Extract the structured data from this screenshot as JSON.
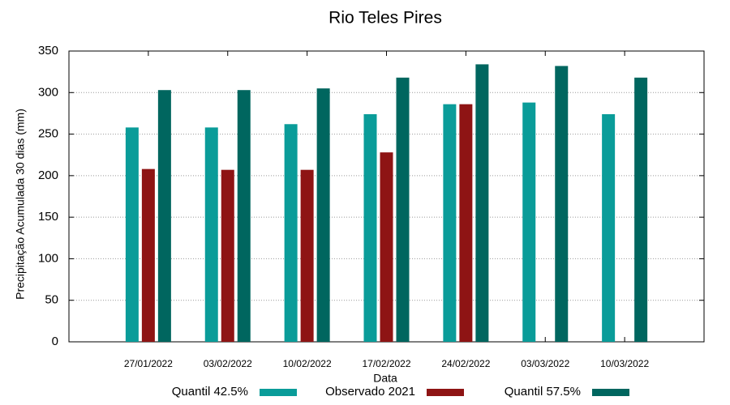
{
  "chart_data": {
    "type": "bar",
    "title": "Rio Teles Pires",
    "x_label": "Data",
    "y_label": "Precipitação Acumulada 30 dias (mm)",
    "categories": [
      "27/01/2022",
      "03/02/2022",
      "10/02/2022",
      "17/02/2022",
      "24/02/2022",
      "03/03/2022",
      "10/03/2022"
    ],
    "series": [
      {
        "name": "Quantil 42.5%",
        "color": "#0a9c99",
        "values": [
          258,
          258,
          262,
          274,
          286,
          288,
          274
        ]
      },
      {
        "name": "Observado 2021",
        "color": "#8e1414",
        "values": [
          208,
          207,
          207,
          228,
          286,
          null,
          null
        ]
      },
      {
        "name": "Quantil 57.5%",
        "color": "#00665f",
        "values": [
          303,
          303,
          305,
          318,
          334,
          332,
          318
        ]
      }
    ],
    "ylim": [
      0,
      350
    ],
    "yticks": [
      0,
      50,
      100,
      150,
      200,
      250,
      300,
      350
    ],
    "grid": true
  }
}
